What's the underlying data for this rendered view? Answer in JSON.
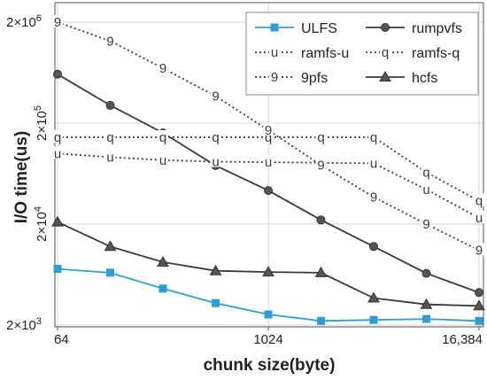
{
  "chart_data": {
    "type": "line",
    "title": "",
    "xlabel": "chunk size(byte)",
    "ylabel": "I/O time(us)",
    "x_scale": "log2",
    "y_scale": "log",
    "x": [
      64,
      128,
      256,
      512,
      1024,
      2048,
      4096,
      8192,
      16384
    ],
    "xticks": [
      {
        "value": 64,
        "label": "64"
      },
      {
        "value": 1024,
        "label": "1024"
      },
      {
        "value": 16384,
        "label": "16,384"
      }
    ],
    "yticks": [
      {
        "value": 2000,
        "base": "2×10",
        "exp": "3"
      },
      {
        "value": 20000,
        "base": "2×10",
        "exp": "4"
      },
      {
        "value": 200000,
        "base": "2×10",
        "exp": "5"
      },
      {
        "value": 2000000,
        "base": "2×10",
        "exp": "6"
      }
    ],
    "ylim": [
      2000,
      2000000
    ],
    "grid": true,
    "legend_position": "top-right",
    "series": [
      {
        "name": "ULFS",
        "marker": "square",
        "dash": "solid",
        "color": "#2b9fd9",
        "values": [
          7200,
          6600,
          4600,
          3300,
          2550,
          2200,
          2250,
          2300,
          2200
        ]
      },
      {
        "name": "rumpvfs",
        "marker": "circle",
        "dash": "solid",
        "color": "#3a3a3a",
        "values": [
          610000,
          300000,
          160000,
          76000,
          43000,
          22000,
          12000,
          6500,
          4200
        ]
      },
      {
        "name": "ramfs-u",
        "marker": "u",
        "dash": "dotted",
        "color": "#3a3a3a",
        "values": [
          100000,
          92000,
          86000,
          83000,
          82000,
          81000,
          80000,
          44000,
          23000
        ]
      },
      {
        "name": "ramfs-q",
        "marker": "q",
        "dash": "dotted",
        "color": "#3a3a3a",
        "values": [
          145000,
          145000,
          145000,
          145000,
          145000,
          145000,
          145000,
          65000,
          34000
        ]
      },
      {
        "name": "9pfs",
        "marker": "9",
        "dash": "dotted",
        "color": "#3a3a3a",
        "values": [
          2000000,
          1300000,
          700000,
          370000,
          170000,
          77000,
          37000,
          20000,
          11000
        ]
      },
      {
        "name": "hcfs",
        "marker": "triangle",
        "dash": "solid",
        "color": "#3a3a3a",
        "values": [
          21000,
          12000,
          8400,
          6900,
          6700,
          6600,
          3700,
          3200,
          3100
        ]
      }
    ]
  }
}
